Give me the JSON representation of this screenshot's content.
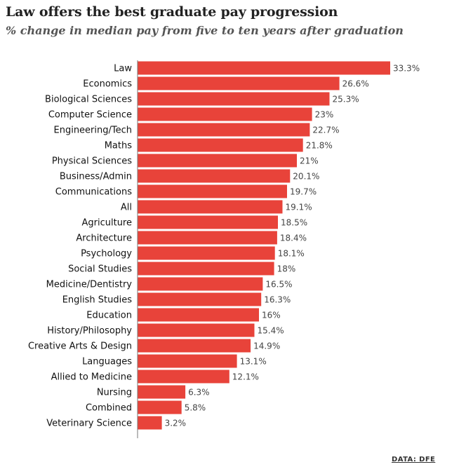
{
  "chart_data": {
    "type": "bar",
    "orientation": "horizontal",
    "title": "Law offers the best graduate pay progression",
    "subtitle": "% change in median pay from five to ten years after graduation",
    "categories": [
      "Law",
      "Economics",
      "Biological Sciences",
      "Computer Science",
      "Engineering/Tech",
      "Maths",
      "Physical Sciences",
      "Business/Admin",
      "Communications",
      "All",
      "Agriculture",
      "Architecture",
      "Psychology",
      "Social Studies",
      "Medicine/Dentistry",
      "English Studies",
      "Education",
      "History/Philosophy",
      "Creative Arts & Design",
      "Languages",
      "Allied to Medicine",
      "Nursing",
      "Combined",
      "Veterinary Science"
    ],
    "values": [
      33.3,
      26.6,
      25.3,
      23,
      22.7,
      21.8,
      21,
      20.1,
      19.7,
      19.1,
      18.5,
      18.4,
      18.1,
      18,
      16.5,
      16.3,
      16,
      15.4,
      14.9,
      13.1,
      12.1,
      6.3,
      5.8,
      3.2
    ],
    "value_labels": [
      "33.3%",
      "26.6%",
      "25.3%",
      "23%",
      "22.7%",
      "21.8%",
      "21%",
      "20.1%",
      "19.7%",
      "19.1%",
      "18.5%",
      "18.4%",
      "18.1%",
      "18%",
      "16.5%",
      "16.3%",
      "16%",
      "15.4%",
      "14.9%",
      "13.1%",
      "12.1%",
      "6.3%",
      "5.8%",
      "3.2%"
    ],
    "xlim": [
      0,
      33.3
    ],
    "bar_color": "#e8433a",
    "source": "DATA: DFE"
  }
}
